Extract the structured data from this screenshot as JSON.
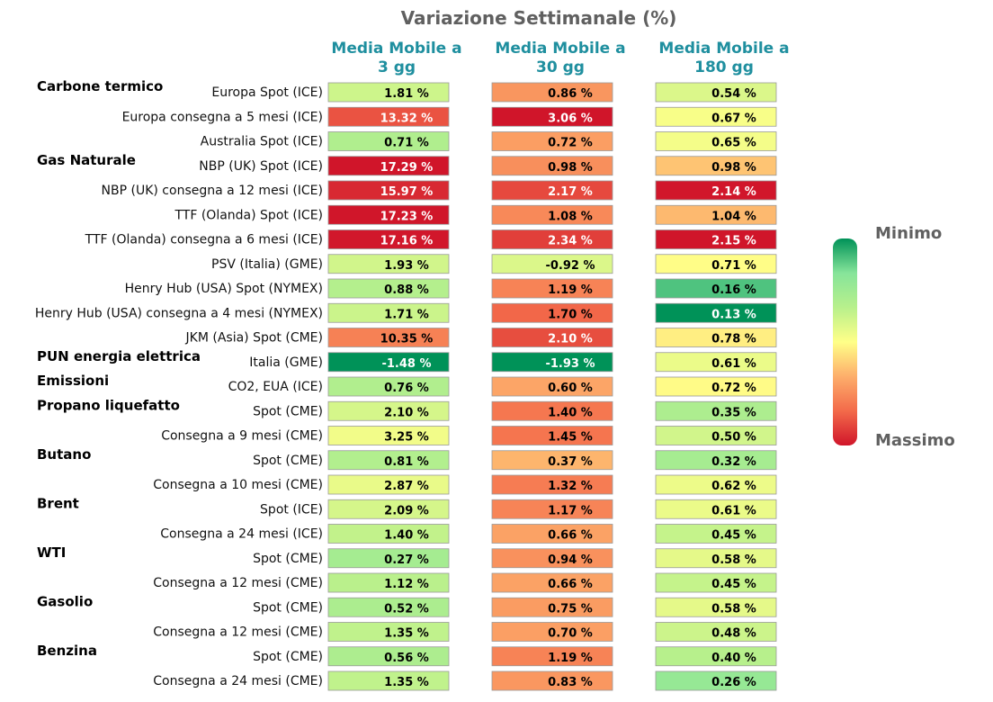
{
  "chart_data": {
    "type": "heatmap",
    "title": "Variazione Settimanale (%)",
    "columns": [
      {
        "line1": "Media Mobile a",
        "line2": "3 gg"
      },
      {
        "line1": "Media Mobile a",
        "line2": "30 gg"
      },
      {
        "line1": "Media Mobile a",
        "line2": "180 gg"
      }
    ],
    "rows": [
      {
        "group": "Carbone termico",
        "label": "Europa Spot (ICE)",
        "values": [
          1.81,
          0.86,
          0.54
        ]
      },
      {
        "group": "",
        "label": "Europa consegna a 5 mesi (ICE)",
        "values": [
          13.32,
          3.06,
          0.67
        ]
      },
      {
        "group": "",
        "label": "Australia Spot (ICE)",
        "values": [
          0.71,
          0.72,
          0.65
        ]
      },
      {
        "group": "Gas Naturale",
        "label": "NBP (UK) Spot (ICE)",
        "values": [
          17.29,
          0.98,
          0.98
        ]
      },
      {
        "group": "",
        "label": "NBP (UK) consegna a 12 mesi (ICE)",
        "values": [
          15.97,
          2.17,
          2.14
        ]
      },
      {
        "group": "",
        "label": "TTF (Olanda) Spot (ICE)",
        "values": [
          17.23,
          1.08,
          1.04
        ]
      },
      {
        "group": "",
        "label": "TTF (Olanda) consegna a 6 mesi (ICE)",
        "values": [
          17.16,
          2.34,
          2.15
        ]
      },
      {
        "group": "",
        "label": "PSV (Italia) (GME)",
        "values": [
          1.93,
          -0.92,
          0.71
        ]
      },
      {
        "group": "",
        "label": "Henry Hub (USA) Spot (NYMEX)",
        "values": [
          0.88,
          1.19,
          0.16
        ]
      },
      {
        "group": "",
        "label": "Henry Hub (USA) consegna a 4 mesi (NYMEX)",
        "values": [
          1.71,
          1.7,
          0.13
        ]
      },
      {
        "group": "",
        "label": "JKM (Asia) Spot (CME)",
        "values": [
          10.35,
          2.1,
          0.78
        ]
      },
      {
        "group": "PUN energia elettrica",
        "label": "Italia (GME)",
        "values": [
          -1.48,
          -1.93,
          0.61
        ]
      },
      {
        "group": "Emissioni",
        "label": "CO2, EUA (ICE)",
        "values": [
          0.76,
          0.6,
          0.72
        ]
      },
      {
        "group": "Propano liquefatto",
        "label": "Spot (CME)",
        "values": [
          2.1,
          1.4,
          0.35
        ]
      },
      {
        "group": "",
        "label": "Consegna a 9 mesi (CME)",
        "values": [
          3.25,
          1.45,
          0.5
        ]
      },
      {
        "group": "Butano",
        "label": "Spot (CME)",
        "values": [
          0.81,
          0.37,
          0.32
        ]
      },
      {
        "group": "",
        "label": "Consegna a 10 mesi (CME)",
        "values": [
          2.87,
          1.32,
          0.62
        ]
      },
      {
        "group": "Brent",
        "label": "Spot (ICE)",
        "values": [
          2.09,
          1.17,
          0.61
        ]
      },
      {
        "group": "",
        "label": "Consegna a 24 mesi (ICE)",
        "values": [
          1.4,
          0.66,
          0.45
        ]
      },
      {
        "group": "WTI",
        "label": "Spot (CME)",
        "values": [
          0.27,
          0.94,
          0.58
        ]
      },
      {
        "group": "",
        "label": "Consegna a 12 mesi (CME)",
        "values": [
          1.12,
          0.66,
          0.45
        ]
      },
      {
        "group": "Gasolio",
        "label": "Spot (CME)",
        "values": [
          0.52,
          0.75,
          0.58
        ]
      },
      {
        "group": "",
        "label": "Consegna a 12 mesi (CME)",
        "values": [
          1.35,
          0.7,
          0.48
        ]
      },
      {
        "group": "Benzina",
        "label": "Spot (CME)",
        "values": [
          0.56,
          1.19,
          0.4
        ]
      },
      {
        "group": "",
        "label": "Consegna a 24 mesi (CME)",
        "values": [
          1.35,
          0.83,
          0.26
        ]
      }
    ],
    "value_suffix": " %",
    "colormap": [
      "#d0152a",
      "#f36a4a",
      "#fdae6b",
      "#ffff88",
      "#b8f08c",
      "#86e49a",
      "#009258"
    ],
    "legend": {
      "top_label": "Minimo",
      "bottom_label": "Massimo",
      "position": "right"
    }
  }
}
